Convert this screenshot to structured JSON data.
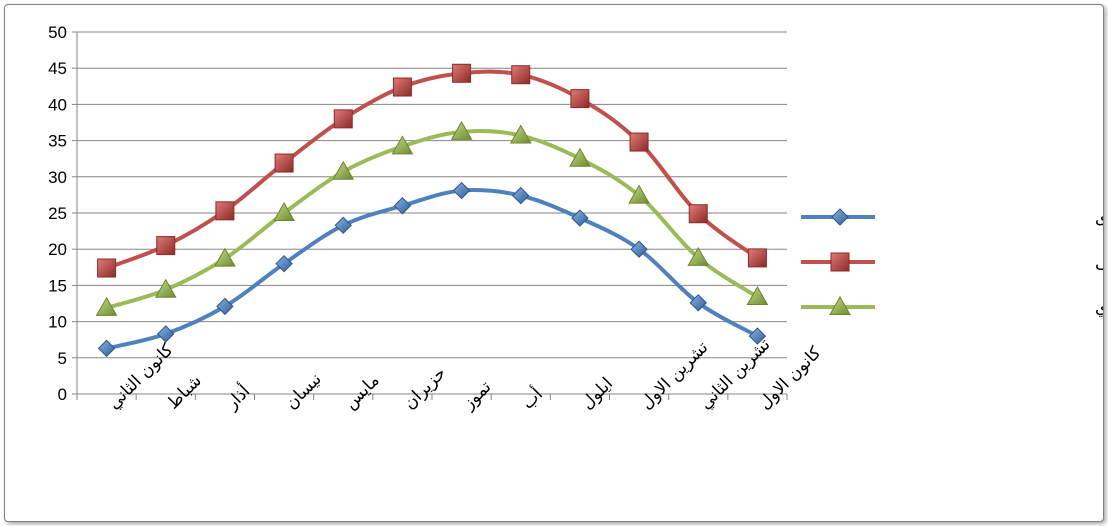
{
  "chart_data": {
    "type": "line",
    "title": "",
    "xlabel": "",
    "ylabel": "",
    "ylim": [
      0,
      50
    ],
    "yticks": [
      0,
      5,
      10,
      15,
      20,
      25,
      30,
      35,
      40,
      45,
      50
    ],
    "grid": true,
    "legend_position": "right",
    "categories": [
      "كانون الثاني",
      "شباط",
      "أذار",
      "نيسان",
      "مايس",
      "حزيران",
      "تموز",
      "أب",
      "ايلول",
      "تشرين الاول",
      "تشرين الثاني",
      "كانون الاول"
    ],
    "series": [
      {
        "name": "درجة الحرارة الصغرى",
        "color": "#4f81bd",
        "marker": "diamond",
        "values": [
          6.3,
          8.3,
          12.1,
          18.0,
          23.3,
          26.0,
          28.1,
          27.4,
          24.3,
          20.0,
          12.6,
          8.0
        ]
      },
      {
        "name": "درجة الحرارة العظمى",
        "color": "#c0504d",
        "marker": "square",
        "values": [
          17.4,
          20.5,
          25.3,
          31.9,
          38.0,
          42.4,
          44.3,
          44.1,
          40.8,
          34.8,
          24.9,
          18.8
        ]
      },
      {
        "name": "المعدل الشهري",
        "color": "#9bbb59",
        "marker": "triangle",
        "values": [
          11.9,
          14.4,
          18.7,
          25.0,
          30.7,
          34.2,
          36.2,
          35.7,
          32.5,
          27.4,
          18.8,
          13.4
        ]
      }
    ]
  }
}
